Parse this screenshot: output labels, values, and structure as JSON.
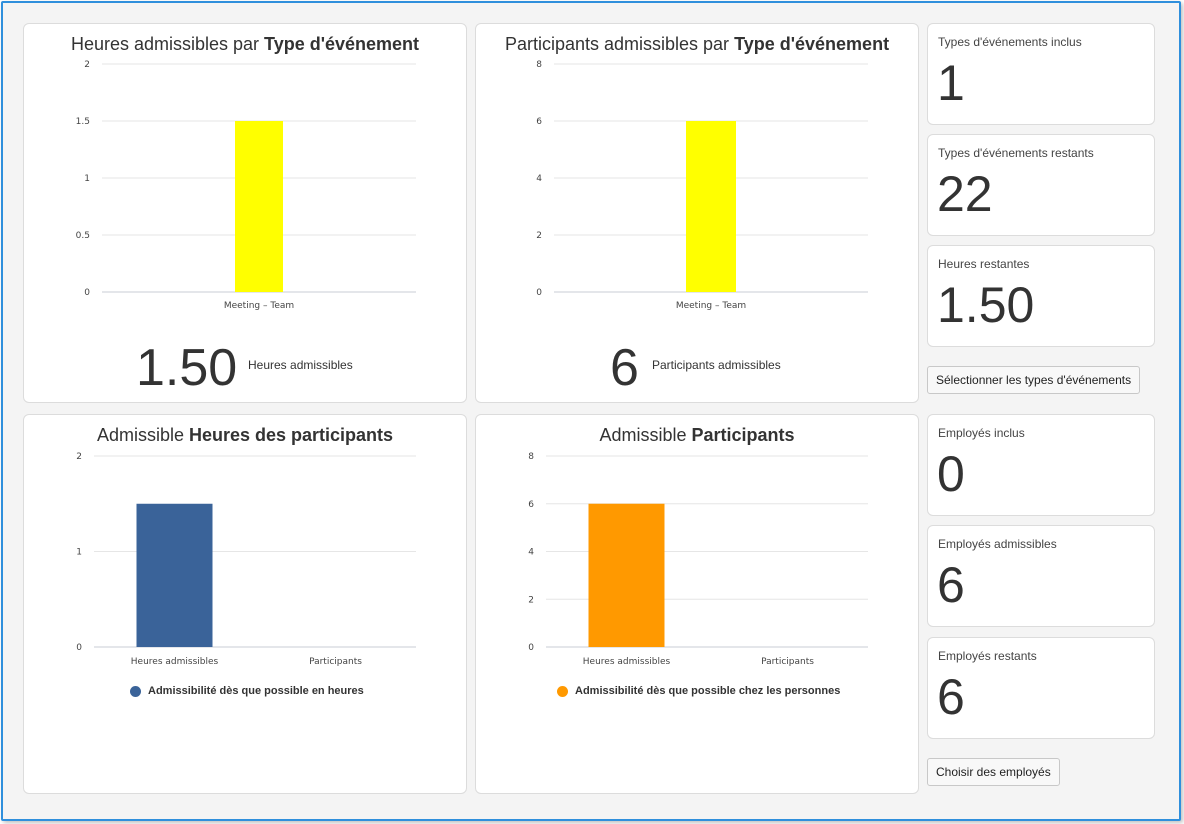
{
  "charts": {
    "hours_by_type": {
      "title_prefix": "Heures admissibles par",
      "title_bold": "Type d'événement",
      "big_value": "1.50",
      "big_label": "Heures admissibles"
    },
    "participants_by_type": {
      "title_prefix": "Participants admissibles par",
      "title_bold": "Type d'événement",
      "big_value": "6",
      "big_label": "Participants admissibles"
    },
    "participant_hours": {
      "title_prefix": "Admissible",
      "title_bold": "Heures des participants",
      "legend": "Admissibilité dès que possible en heures"
    },
    "participants": {
      "title_prefix": "Admissible",
      "title_bold": "Participants",
      "legend": "Admissibilité dès que possible chez les personnes"
    }
  },
  "chart_data": [
    {
      "type": "bar",
      "title": "Heures admissibles par Type d'événement",
      "categories": [
        "Meeting – Team"
      ],
      "values": [
        1.5
      ],
      "ylim": [
        0,
        2
      ],
      "yticks": [
        "0",
        "0.5",
        "1",
        "1.5",
        "2"
      ],
      "color": "#ffff00",
      "grid": true
    },
    {
      "type": "bar",
      "title": "Participants admissibles par Type d'événement",
      "categories": [
        "Meeting – Team"
      ],
      "values": [
        6
      ],
      "ylim": [
        0,
        8
      ],
      "yticks": [
        "0",
        "2",
        "4",
        "6",
        "8"
      ],
      "color": "#ffff00",
      "grid": true
    },
    {
      "type": "bar",
      "title": "Admissible Heures des participants",
      "categories": [
        "Heures admissibles",
        "Participants"
      ],
      "series": [
        {
          "name": "Admissibilité dès que possible en heures",
          "values": [
            1.5,
            0
          ]
        }
      ],
      "ylim": [
        0,
        2
      ],
      "yticks": [
        "0",
        "1",
        "2"
      ],
      "color": "#3a6399",
      "grid": true,
      "legend": "bottom"
    },
    {
      "type": "bar",
      "title": "Admissible Participants",
      "categories": [
        "Heures admissibles",
        "Participants"
      ],
      "series": [
        {
          "name": "Admissibilité dès que possible chez les personnes",
          "values": [
            6,
            0
          ]
        }
      ],
      "ylim": [
        0,
        8
      ],
      "yticks": [
        "0",
        "2",
        "4",
        "6",
        "8"
      ],
      "color": "#ff9900",
      "grid": true,
      "legend": "bottom"
    }
  ],
  "event_stats": [
    {
      "label": "Types d'événements inclus",
      "value": "1"
    },
    {
      "label": "Types d'événements restants",
      "value": "22"
    },
    {
      "label": "Heures restantes",
      "value": "1.50"
    }
  ],
  "employee_stats": [
    {
      "label": "Employés inclus",
      "value": "0"
    },
    {
      "label": "Employés admissibles",
      "value": "6"
    },
    {
      "label": "Employés restants",
      "value": "6"
    }
  ],
  "buttons": {
    "select_event_types": "Sélectionner les types d'événements",
    "choose_employees": "Choisir des employés"
  }
}
